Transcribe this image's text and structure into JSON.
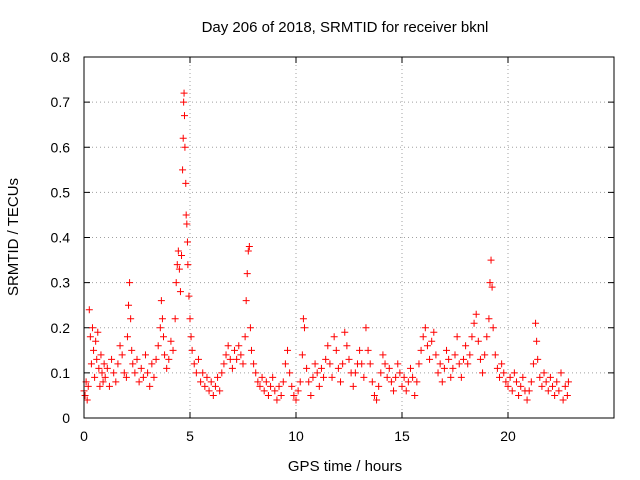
{
  "colors": {
    "series": "#ff0000",
    "axis": "#000000",
    "grid": "#a0a0a0",
    "background": "#ffffff"
  },
  "chart_data": {
    "type": "scatter",
    "title": "Day 206 of 2018, SRMTID for receiver bknl",
    "xlabel": "GPS time / hours",
    "ylabel": "SRMTID / TECUs",
    "xlim": [
      0,
      25
    ],
    "ylim": [
      0,
      0.8
    ],
    "xticks": [
      0,
      5,
      10,
      15,
      20
    ],
    "yticks": [
      0,
      0.1,
      0.2,
      0.3,
      0.4,
      0.5,
      0.6,
      0.7,
      0.8
    ],
    "xtick_labels": [
      "0",
      "5",
      "10",
      "15",
      "20"
    ],
    "ytick_labels": [
      "0",
      "0.1",
      "0.2",
      "0.3",
      "0.4",
      "0.5",
      "0.6",
      "0.7",
      "0.8"
    ],
    "grid": true,
    "legend": "none",
    "marker": "+",
    "series": [
      {
        "name": "SRMTID",
        "points": [
          [
            0.0,
            0.06
          ],
          [
            0.05,
            0.05
          ],
          [
            0.1,
            0.08
          ],
          [
            0.15,
            0.04
          ],
          [
            0.2,
            0.07
          ],
          [
            0.25,
            0.24
          ],
          [
            0.3,
            0.18
          ],
          [
            0.35,
            0.12
          ],
          [
            0.4,
            0.2
          ],
          [
            0.45,
            0.15
          ],
          [
            0.5,
            0.09
          ],
          [
            0.55,
            0.17
          ],
          [
            0.6,
            0.13
          ],
          [
            0.65,
            0.19
          ],
          [
            0.7,
            0.11
          ],
          [
            0.75,
            0.07
          ],
          [
            0.8,
            0.14
          ],
          [
            0.85,
            0.1
          ],
          [
            0.9,
            0.08
          ],
          [
            0.95,
            0.12
          ],
          [
            1.0,
            0.09
          ],
          [
            1.1,
            0.11
          ],
          [
            1.2,
            0.07
          ],
          [
            1.3,
            0.13
          ],
          [
            1.4,
            0.1
          ],
          [
            1.5,
            0.08
          ],
          [
            1.6,
            0.12
          ],
          [
            1.7,
            0.16
          ],
          [
            1.8,
            0.14
          ],
          [
            1.9,
            0.1
          ],
          [
            2.0,
            0.09
          ],
          [
            2.05,
            0.18
          ],
          [
            2.1,
            0.25
          ],
          [
            2.15,
            0.3
          ],
          [
            2.2,
            0.22
          ],
          [
            2.25,
            0.15
          ],
          [
            2.3,
            0.12
          ],
          [
            2.4,
            0.1
          ],
          [
            2.5,
            0.13
          ],
          [
            2.6,
            0.08
          ],
          [
            2.7,
            0.11
          ],
          [
            2.8,
            0.09
          ],
          [
            2.9,
            0.14
          ],
          [
            3.0,
            0.1
          ],
          [
            3.1,
            0.07
          ],
          [
            3.2,
            0.12
          ],
          [
            3.3,
            0.09
          ],
          [
            3.4,
            0.13
          ],
          [
            3.5,
            0.16
          ],
          [
            3.6,
            0.2
          ],
          [
            3.65,
            0.26
          ],
          [
            3.7,
            0.22
          ],
          [
            3.75,
            0.18
          ],
          [
            3.8,
            0.14
          ],
          [
            3.9,
            0.11
          ],
          [
            4.0,
            0.13
          ],
          [
            4.1,
            0.17
          ],
          [
            4.2,
            0.15
          ],
          [
            4.3,
            0.22
          ],
          [
            4.35,
            0.3
          ],
          [
            4.4,
            0.34
          ],
          [
            4.45,
            0.37
          ],
          [
            4.5,
            0.33
          ],
          [
            4.55,
            0.28
          ],
          [
            4.6,
            0.36
          ],
          [
            4.65,
            0.55
          ],
          [
            4.68,
            0.62
          ],
          [
            4.7,
            0.7
          ],
          [
            4.72,
            0.72
          ],
          [
            4.74,
            0.67
          ],
          [
            4.76,
            0.6
          ],
          [
            4.8,
            0.52
          ],
          [
            4.82,
            0.45
          ],
          [
            4.85,
            0.43
          ],
          [
            4.88,
            0.39
          ],
          [
            4.9,
            0.34
          ],
          [
            4.95,
            0.27
          ],
          [
            5.0,
            0.22
          ],
          [
            5.05,
            0.18
          ],
          [
            5.1,
            0.15
          ],
          [
            5.2,
            0.12
          ],
          [
            5.3,
            0.1
          ],
          [
            5.4,
            0.13
          ],
          [
            5.5,
            0.08
          ],
          [
            5.6,
            0.1
          ],
          [
            5.7,
            0.07
          ],
          [
            5.8,
            0.09
          ],
          [
            5.9,
            0.06
          ],
          [
            6.0,
            0.08
          ],
          [
            6.1,
            0.05
          ],
          [
            6.2,
            0.07
          ],
          [
            6.3,
            0.09
          ],
          [
            6.4,
            0.06
          ],
          [
            6.5,
            0.1
          ],
          [
            6.6,
            0.12
          ],
          [
            6.7,
            0.14
          ],
          [
            6.8,
            0.16
          ],
          [
            6.9,
            0.13
          ],
          [
            7.0,
            0.11
          ],
          [
            7.1,
            0.15
          ],
          [
            7.2,
            0.13
          ],
          [
            7.3,
            0.16
          ],
          [
            7.4,
            0.14
          ],
          [
            7.5,
            0.12
          ],
          [
            7.6,
            0.18
          ],
          [
            7.65,
            0.26
          ],
          [
            7.7,
            0.32
          ],
          [
            7.75,
            0.37
          ],
          [
            7.8,
            0.38
          ],
          [
            7.85,
            0.2
          ],
          [
            7.9,
            0.15
          ],
          [
            8.0,
            0.12
          ],
          [
            8.1,
            0.1
          ],
          [
            8.2,
            0.08
          ],
          [
            8.3,
            0.07
          ],
          [
            8.4,
            0.09
          ],
          [
            8.5,
            0.06
          ],
          [
            8.6,
            0.08
          ],
          [
            8.7,
            0.05
          ],
          [
            8.8,
            0.07
          ],
          [
            8.9,
            0.09
          ],
          [
            9.0,
            0.06
          ],
          [
            9.1,
            0.04
          ],
          [
            9.2,
            0.07
          ],
          [
            9.3,
            0.05
          ],
          [
            9.4,
            0.08
          ],
          [
            9.5,
            0.12
          ],
          [
            9.6,
            0.15
          ],
          [
            9.7,
            0.1
          ],
          [
            9.8,
            0.07
          ],
          [
            9.9,
            0.05
          ],
          [
            10.0,
            0.04
          ],
          [
            10.1,
            0.06
          ],
          [
            10.2,
            0.08
          ],
          [
            10.3,
            0.14
          ],
          [
            10.35,
            0.22
          ],
          [
            10.4,
            0.2
          ],
          [
            10.5,
            0.11
          ],
          [
            10.6,
            0.08
          ],
          [
            10.7,
            0.05
          ],
          [
            10.8,
            0.09
          ],
          [
            10.9,
            0.12
          ],
          [
            11.0,
            0.1
          ],
          [
            11.1,
            0.07
          ],
          [
            11.2,
            0.11
          ],
          [
            11.3,
            0.09
          ],
          [
            11.4,
            0.13
          ],
          [
            11.5,
            0.16
          ],
          [
            11.6,
            0.12
          ],
          [
            11.7,
            0.09
          ],
          [
            11.8,
            0.18
          ],
          [
            11.9,
            0.15
          ],
          [
            12.0,
            0.11
          ],
          [
            12.1,
            0.08
          ],
          [
            12.2,
            0.12
          ],
          [
            12.3,
            0.19
          ],
          [
            12.4,
            0.16
          ],
          [
            12.5,
            0.13
          ],
          [
            12.6,
            0.1
          ],
          [
            12.7,
            0.07
          ],
          [
            12.8,
            0.1
          ],
          [
            12.9,
            0.12
          ],
          [
            13.0,
            0.15
          ],
          [
            13.1,
            0.12
          ],
          [
            13.2,
            0.09
          ],
          [
            13.3,
            0.2
          ],
          [
            13.4,
            0.15
          ],
          [
            13.5,
            0.12
          ],
          [
            13.6,
            0.08
          ],
          [
            13.7,
            0.05
          ],
          [
            13.8,
            0.04
          ],
          [
            13.9,
            0.07
          ],
          [
            14.0,
            0.1
          ],
          [
            14.1,
            0.14
          ],
          [
            14.2,
            0.12
          ],
          [
            14.3,
            0.09
          ],
          [
            14.4,
            0.11
          ],
          [
            14.5,
            0.08
          ],
          [
            14.6,
            0.06
          ],
          [
            14.7,
            0.09
          ],
          [
            14.8,
            0.12
          ],
          [
            14.9,
            0.1
          ],
          [
            15.0,
            0.07
          ],
          [
            15.1,
            0.09
          ],
          [
            15.2,
            0.06
          ],
          [
            15.3,
            0.08
          ],
          [
            15.4,
            0.11
          ],
          [
            15.5,
            0.09
          ],
          [
            15.6,
            0.05
          ],
          [
            15.7,
            0.08
          ],
          [
            15.8,
            0.12
          ],
          [
            15.9,
            0.15
          ],
          [
            16.0,
            0.18
          ],
          [
            16.1,
            0.2
          ],
          [
            16.2,
            0.16
          ],
          [
            16.3,
            0.13
          ],
          [
            16.4,
            0.17
          ],
          [
            16.5,
            0.19
          ],
          [
            16.6,
            0.14
          ],
          [
            16.7,
            0.1
          ],
          [
            16.8,
            0.12
          ],
          [
            16.9,
            0.08
          ],
          [
            17.0,
            0.11
          ],
          [
            17.1,
            0.15
          ],
          [
            17.2,
            0.13
          ],
          [
            17.3,
            0.09
          ],
          [
            17.4,
            0.11
          ],
          [
            17.5,
            0.14
          ],
          [
            17.6,
            0.18
          ],
          [
            17.7,
            0.12
          ],
          [
            17.8,
            0.09
          ],
          [
            17.9,
            0.13
          ],
          [
            18.0,
            0.16
          ],
          [
            18.1,
            0.12
          ],
          [
            18.2,
            0.14
          ],
          [
            18.3,
            0.18
          ],
          [
            18.4,
            0.21
          ],
          [
            18.5,
            0.23
          ],
          [
            18.6,
            0.17
          ],
          [
            18.7,
            0.13
          ],
          [
            18.8,
            0.1
          ],
          [
            18.9,
            0.14
          ],
          [
            19.0,
            0.18
          ],
          [
            19.1,
            0.22
          ],
          [
            19.15,
            0.3
          ],
          [
            19.2,
            0.35
          ],
          [
            19.25,
            0.29
          ],
          [
            19.3,
            0.2
          ],
          [
            19.4,
            0.14
          ],
          [
            19.5,
            0.11
          ],
          [
            19.6,
            0.09
          ],
          [
            19.7,
            0.12
          ],
          [
            19.8,
            0.1
          ],
          [
            19.9,
            0.08
          ],
          [
            20.0,
            0.07
          ],
          [
            20.1,
            0.09
          ],
          [
            20.2,
            0.06
          ],
          [
            20.3,
            0.1
          ],
          [
            20.4,
            0.08
          ],
          [
            20.5,
            0.05
          ],
          [
            20.6,
            0.07
          ],
          [
            20.7,
            0.09
          ],
          [
            20.8,
            0.06
          ],
          [
            20.9,
            0.04
          ],
          [
            21.0,
            0.06
          ],
          [
            21.1,
            0.08
          ],
          [
            21.2,
            0.12
          ],
          [
            21.3,
            0.21
          ],
          [
            21.35,
            0.17
          ],
          [
            21.4,
            0.13
          ],
          [
            21.5,
            0.09
          ],
          [
            21.6,
            0.07
          ],
          [
            21.7,
            0.1
          ],
          [
            21.8,
            0.08
          ],
          [
            21.9,
            0.06
          ],
          [
            22.0,
            0.09
          ],
          [
            22.1,
            0.07
          ],
          [
            22.2,
            0.05
          ],
          [
            22.3,
            0.08
          ],
          [
            22.4,
            0.06
          ],
          [
            22.5,
            0.1
          ],
          [
            22.6,
            0.04
          ],
          [
            22.7,
            0.07
          ],
          [
            22.8,
            0.05
          ],
          [
            22.85,
            0.08
          ]
        ]
      }
    ]
  }
}
